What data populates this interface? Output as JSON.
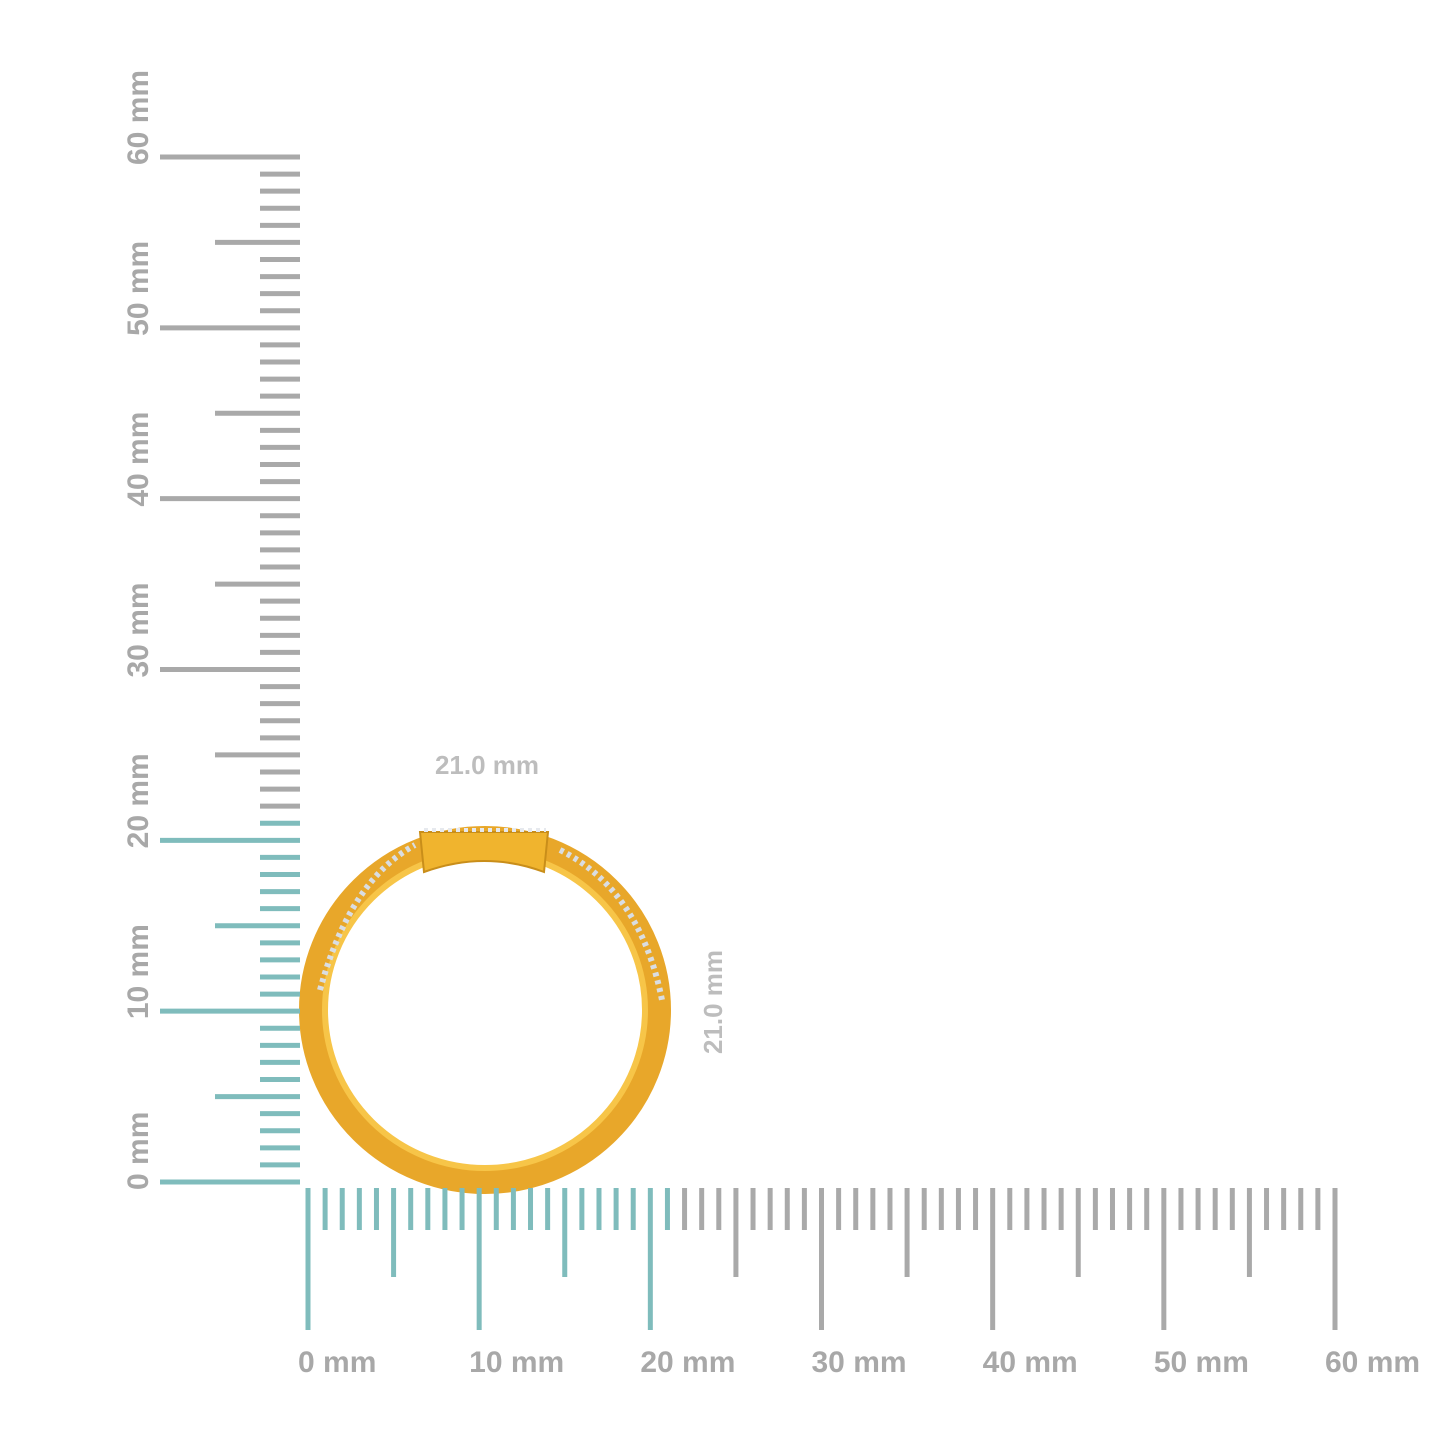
{
  "rulers": {
    "horizontal": {
      "labels": [
        "0 mm",
        "10 mm",
        "20 mm",
        "30 mm",
        "40 mm",
        "50 mm",
        "60 mm"
      ]
    },
    "vertical": {
      "labels": [
        "0 mm",
        "10 mm",
        "20 mm",
        "30 mm",
        "40 mm",
        "50 mm",
        "60 mm"
      ]
    }
  },
  "dimensions": {
    "width": {
      "value": 21.0,
      "label": "21.0 mm"
    },
    "height": {
      "value": 21.0,
      "label": "21.0 mm"
    }
  }
}
